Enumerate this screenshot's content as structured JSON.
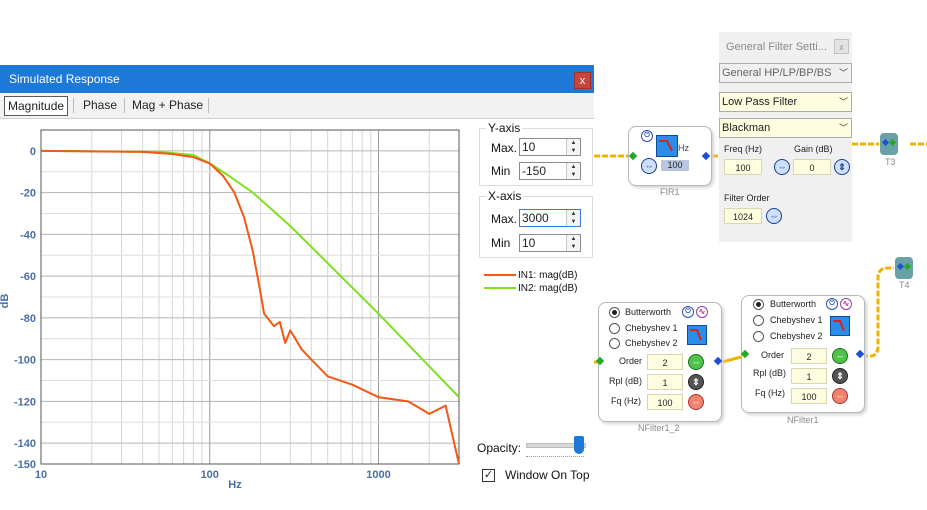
{
  "sim_window": {
    "title": "Simulated Response",
    "close_glyph": "x",
    "tabs": [
      "Magnitude",
      "Phase",
      "Mag + Phase"
    ]
  },
  "chart_data": {
    "type": "line",
    "xscale": "log",
    "xlabel": "Hz",
    "ylabel": "dB",
    "xlim": [
      10,
      3000
    ],
    "ylim": [
      -150,
      10
    ],
    "x_tick_labels": [
      "10",
      "100",
      "1000"
    ],
    "y_tick_labels": [
      "0",
      "-20",
      "-40",
      "-60",
      "-80",
      "-100",
      "-120",
      "-140",
      "-150"
    ],
    "grid": true,
    "legend_position": "right",
    "series": [
      {
        "name": "IN1: mag(dB)",
        "color": "#f05a14",
        "x": [
          10,
          40,
          60,
          80,
          100,
          120,
          140,
          160,
          180,
          200,
          210,
          220,
          240,
          260,
          280,
          300,
          350,
          400,
          500,
          700,
          1000,
          1500,
          2000,
          2500,
          3000
        ],
        "y": [
          0,
          -0.5,
          -1.5,
          -3,
          -6,
          -12,
          -20,
          -32,
          -48,
          -68,
          -78,
          -80,
          -84,
          -82,
          -92,
          -86,
          -95,
          -100,
          -108,
          -112,
          -118,
          -120,
          -126,
          -122,
          -150
        ]
      },
      {
        "name": "IN2: mag(dB)",
        "color": "#7ee01e",
        "x": [
          10,
          50,
          80,
          100,
          130,
          180,
          300,
          1000,
          3000
        ],
        "y": [
          0,
          -0.5,
          -2,
          -6,
          -12,
          -20,
          -36,
          -78,
          -118
        ]
      }
    ]
  },
  "y_axis": {
    "title": "Y-axis",
    "max_label": "Max.",
    "max_value": "10",
    "min_label": "Min",
    "min_value": "-150"
  },
  "x_axis": {
    "title": "X-axis",
    "max_label": "Max.",
    "max_value": "3000",
    "min_label": "Min",
    "min_value": "10"
  },
  "opacity": {
    "label": "Opacity:",
    "value": 1.0
  },
  "window_on_top": {
    "label": "Window On Top",
    "checked": true
  },
  "fir_block": {
    "caption": "FIR1",
    "hz_label": "Hz",
    "freq_value": "100"
  },
  "general_settings": {
    "title": "General Filter Setti...",
    "close_glyph": "x",
    "type_select": "General HP/LP/BP/BS",
    "filter_select": "Low Pass Filter",
    "window_select": "Blackman",
    "freq_label": "Freq (Hz)",
    "freq_value": "100",
    "gain_label": "Gain (dB)",
    "gain_value": "0",
    "order_label": "Filter Order",
    "order_value": "1024"
  },
  "t3_label": "T3",
  "t4_label": "T4",
  "nfilter1_2": {
    "caption": "NFilter1_2",
    "options": [
      "Butterworth",
      "Chebyshev 1",
      "Chebyshev 2"
    ],
    "order_label": "Order",
    "order_value": "2",
    "rpl_label": "Rpl (dB)",
    "rpl_value": "1",
    "fq_label": "Fq (Hz)",
    "fq_value": "100"
  },
  "nfilter1": {
    "caption": "NFilter1",
    "options": [
      "Butterworth",
      "Chebyshev 1",
      "Chebyshev 2"
    ],
    "order_label": "Order",
    "order_value": "2",
    "rpl_label": "Rpl (dB)",
    "rpl_value": "1",
    "fq_label": "Fq (Hz)",
    "fq_value": "100"
  },
  "colors": {
    "titlebar": "#1e78d7",
    "wire": "#f0b400",
    "block_blue": "#2a8ee8"
  }
}
